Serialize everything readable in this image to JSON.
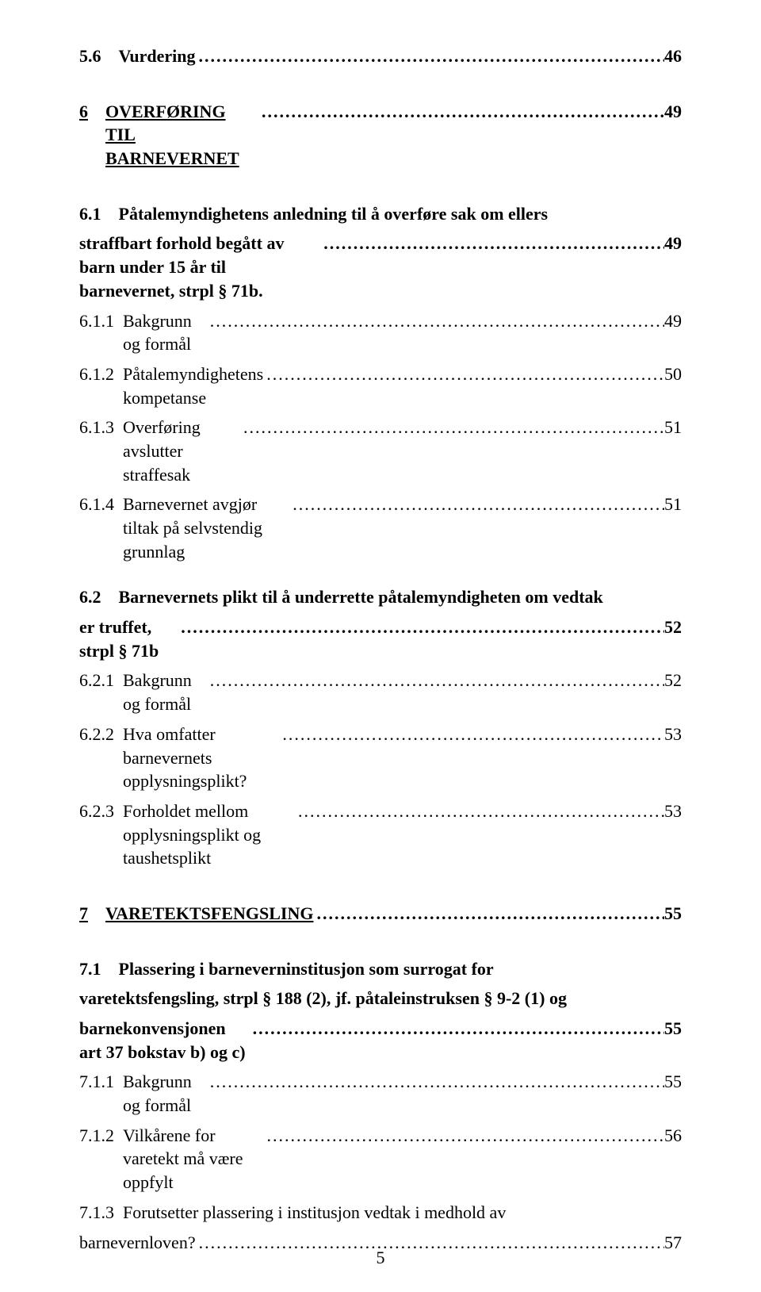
{
  "dots": "................................................................................................................................",
  "pageNumber": "5",
  "lines": [
    {
      "kind": "simple",
      "num": "5.6",
      "numGap": "    ",
      "title": "Vurdering",
      "page": "46",
      "bold": true,
      "beforeGap": "none",
      "indent": "a"
    },
    {
      "kind": "simple",
      "num": "6",
      "numGap": "    ",
      "title": "OVERFØRING TIL BARNEVERNET",
      "page": "49",
      "bold": true,
      "beforeGap": "md",
      "indent": "a",
      "underline": true
    },
    {
      "kind": "wrap2",
      "num": "6.1",
      "numGap": "    ",
      "lines": [
        "Påtalemyndighetens anledning til å overføre sak om ellers",
        "straffbart forhold begått av barn under 15 år til barnevernet, strpl § 71b."
      ],
      "page": "49",
      "bold": true,
      "beforeGap": "md",
      "indent": "a"
    },
    {
      "kind": "simple",
      "num": "6.1.1",
      "numGap": "  ",
      "title": "Bakgrunn og formål",
      "page": "49",
      "bold": false,
      "beforeGap": "none",
      "indent": "b"
    },
    {
      "kind": "simple",
      "num": "6.1.2",
      "numGap": "  ",
      "title": "Påtalemyndighetens kompetanse",
      "page": "50",
      "bold": false,
      "beforeGap": "none",
      "indent": "b"
    },
    {
      "kind": "simple",
      "num": "6.1.3",
      "numGap": "  ",
      "title": "Overføring avslutter straffesak",
      "page": "51",
      "bold": false,
      "beforeGap": "none",
      "indent": "b"
    },
    {
      "kind": "simple",
      "num": "6.1.4",
      "numGap": "  ",
      "title": "Barnevernet avgjør tiltak på selvstendig grunnlag",
      "page": "51",
      "bold": false,
      "beforeGap": "none",
      "indent": "b"
    },
    {
      "kind": "wrap2",
      "num": "6.2",
      "numGap": "    ",
      "lines": [
        "Barnevernets plikt til å underrette påtalemyndigheten om vedtak",
        "er truffet, strpl § 71b"
      ],
      "page": "52",
      "bold": true,
      "beforeGap": "sm",
      "indent": "a"
    },
    {
      "kind": "simple",
      "num": "6.2.1",
      "numGap": "  ",
      "title": "Bakgrunn og formål",
      "page": "52",
      "bold": false,
      "beforeGap": "none",
      "indent": "b"
    },
    {
      "kind": "simple",
      "num": "6.2.2",
      "numGap": "  ",
      "title": "Hva omfatter barnevernets opplysningsplikt?",
      "page": "53",
      "bold": false,
      "beforeGap": "none",
      "indent": "b"
    },
    {
      "kind": "simple",
      "num": "6.2.3",
      "numGap": "  ",
      "title": "Forholdet mellom opplysningsplikt og taushetsplikt",
      "page": "53",
      "bold": false,
      "beforeGap": "none",
      "indent": "b"
    },
    {
      "kind": "simple",
      "num": "7",
      "numGap": "    ",
      "title": "VARETEKTSFENGSLING",
      "page": "55",
      "bold": true,
      "beforeGap": "md",
      "indent": "a",
      "underline": true
    },
    {
      "kind": "wrap3",
      "num": "7.1",
      "numGap": "    ",
      "lines": [
        "Plassering i barneverninstitusjon som surrogat for",
        "varetektsfengsling, strpl § 188 (2), jf. påtaleinstruksen § 9-2 (1) og",
        "barnekonvensjonen art 37 bokstav b) og c)"
      ],
      "page": "55",
      "bold": true,
      "beforeGap": "md",
      "indent": "a"
    },
    {
      "kind": "simple",
      "num": "7.1.1",
      "numGap": "  ",
      "title": "Bakgrunn og formål",
      "page": "55",
      "bold": false,
      "beforeGap": "none",
      "indent": "b"
    },
    {
      "kind": "simple",
      "num": "7.1.2",
      "numGap": "  ",
      "title": "Vilkårene for varetekt må være oppfylt",
      "page": "56",
      "bold": false,
      "beforeGap": "none",
      "indent": "b"
    },
    {
      "kind": "wrap2",
      "num": "7.1.3",
      "numGap": "  ",
      "lines": [
        "Forutsetter plassering i institusjon vedtak i medhold av",
        "barnevernloven?"
      ],
      "page": "57",
      "bold": false,
      "beforeGap": "none",
      "indent": "b"
    }
  ]
}
